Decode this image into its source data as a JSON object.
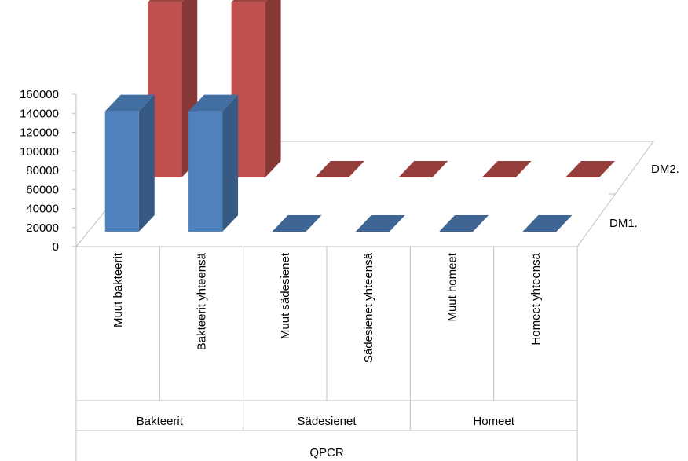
{
  "chart_data": {
    "type": "bar",
    "projection": "3d-column",
    "categories": [
      "Muut bakteerit",
      "Bakteerit yhteensä",
      "Muut sädesienet",
      "Sädesienet yhteensä",
      "Muut homeet",
      "Homeet yhteensä"
    ],
    "groups": [
      {
        "label": "Bakteerit",
        "span": 2
      },
      {
        "label": "Sädesienet",
        "span": 2
      },
      {
        "label": "Homeet",
        "span": 2
      }
    ],
    "outer_label": "QPCR",
    "series": [
      {
        "name": "DM1.",
        "color": "#4F81BD",
        "values": [
          110000,
          110000,
          0,
          0,
          0,
          0
        ]
      },
      {
        "name": "DM2.",
        "color": "#C0504D",
        "values": [
          160000,
          160000,
          0,
          0,
          0,
          0
        ]
      }
    ],
    "ylim": [
      0,
      160000
    ],
    "yticks": [
      "0",
      "20000",
      "40000",
      "60000",
      "80000",
      "100000",
      "120000",
      "140000",
      "160000"
    ],
    "grid": false,
    "legend": "none"
  }
}
